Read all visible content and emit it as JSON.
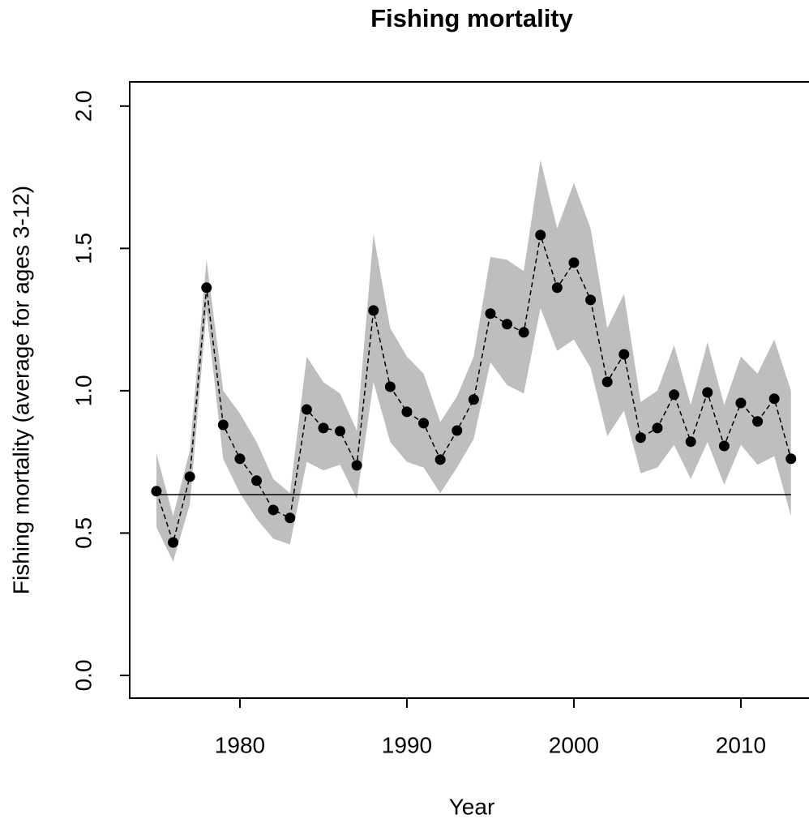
{
  "chart_data": {
    "type": "line",
    "title": "Fishing mortality",
    "x_label": "Year",
    "y_label": "Fishing mortality (average for ages 3-12)",
    "x": [
      1975,
      1976,
      1977,
      1978,
      1979,
      1980,
      1981,
      1982,
      1983,
      1984,
      1985,
      1986,
      1987,
      1988,
      1989,
      1990,
      1991,
      1992,
      1993,
      1994,
      1995,
      1996,
      1997,
      1998,
      1999,
      2000,
      2001,
      2002,
      2003,
      2004,
      2005,
      2006,
      2007,
      2008,
      2009,
      2010,
      2011,
      2012,
      2013
    ],
    "values": [
      0.647,
      0.467,
      0.698,
      1.362,
      0.88,
      0.761,
      0.684,
      0.581,
      0.553,
      0.934,
      0.869,
      0.858,
      0.738,
      1.282,
      1.014,
      0.926,
      0.886,
      0.758,
      0.86,
      0.969,
      1.271,
      1.234,
      1.205,
      1.547,
      1.362,
      1.45,
      1.319,
      1.031,
      1.128,
      0.835,
      0.869,
      0.986,
      0.821,
      0.994,
      0.806,
      0.957,
      0.892,
      0.972,
      0.761
    ],
    "upper": [
      0.78,
      0.56,
      0.79,
      1.46,
      1.0,
      0.92,
      0.82,
      0.69,
      0.64,
      1.12,
      1.03,
      0.99,
      0.86,
      1.55,
      1.22,
      1.12,
      1.06,
      0.89,
      0.98,
      1.12,
      1.47,
      1.46,
      1.42,
      1.81,
      1.57,
      1.73,
      1.57,
      1.22,
      1.34,
      0.96,
      1.0,
      1.16,
      0.95,
      1.17,
      0.95,
      1.12,
      1.06,
      1.18,
      1.0
    ],
    "lower": [
      0.52,
      0.4,
      0.6,
      1.28,
      0.76,
      0.64,
      0.55,
      0.48,
      0.46,
      0.75,
      0.72,
      0.74,
      0.62,
      1.03,
      0.82,
      0.75,
      0.73,
      0.64,
      0.73,
      0.83,
      1.1,
      1.02,
      0.99,
      1.29,
      1.14,
      1.18,
      1.08,
      0.84,
      0.93,
      0.71,
      0.73,
      0.81,
      0.69,
      0.82,
      0.67,
      0.81,
      0.74,
      0.77,
      0.56
    ],
    "reference_line": {
      "value": 0.635,
      "x": [
        1975,
        2013
      ]
    },
    "color": "#000000",
    "band_color": "#bebebe",
    "xlim": [
      1973.4,
      2014.08
    ],
    "ylim": [
      -0.08,
      2.085
    ],
    "xticks": [
      1980,
      1990,
      2000,
      2010
    ],
    "yticks": [
      {
        "value": 0,
        "label": "0.0"
      },
      0.5,
      {
        "value": 1,
        "label": "1.0"
      },
      1.5,
      {
        "value": 2,
        "label": "2.0"
      }
    ]
  }
}
